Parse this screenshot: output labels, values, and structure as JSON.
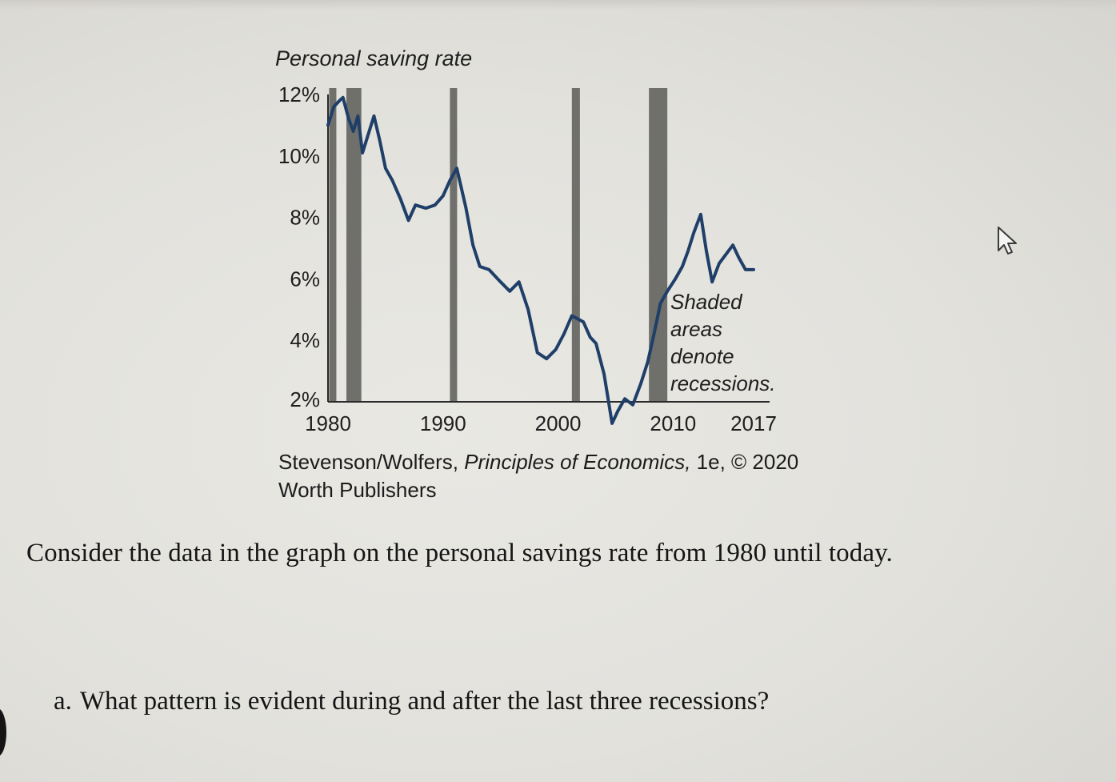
{
  "question": {
    "main_text": "Consider the data in the graph on the personal savings rate from 1980 until today.",
    "sub_marker": "a.",
    "sub_text": "What pattern is evident during and after the last three recessions?"
  },
  "caption": {
    "line1_authors": "Stevenson/Wolfers,",
    "line1_book": "Principles of Economics,",
    "line1_tail": "1e, © 2020",
    "line2": "Worth Publishers"
  },
  "chart_data": {
    "type": "line",
    "title": "Personal saving rate",
    "ylim": [
      2,
      12
    ],
    "xlim": [
      1980,
      2017
    ],
    "y_ticks": [
      "2%",
      "4%",
      "6%",
      "8%",
      "10%",
      "12%"
    ],
    "y_tick_values": [
      2,
      4,
      6,
      8,
      10,
      12
    ],
    "x_ticks": [
      "1980",
      "1990",
      "2000",
      "2010",
      "2017"
    ],
    "x_tick_values": [
      1980,
      1990,
      2000,
      2010,
      2017
    ],
    "annotation": [
      "Shaded",
      "areas",
      "denote",
      "recessions."
    ],
    "recessions": [
      {
        "start": 1980.1,
        "end": 1980.5
      },
      {
        "start": 1981.6,
        "end": 1982.9
      },
      {
        "start": 1990.6,
        "end": 1991.2
      },
      {
        "start": 2001.2,
        "end": 2001.9
      },
      {
        "start": 2007.9,
        "end": 2009.5
      }
    ],
    "series": [
      {
        "values": [
          [
            1980,
            11.0
          ],
          [
            1980.5,
            11.6
          ],
          [
            1981,
            11.8
          ],
          [
            1981.3,
            11.9
          ],
          [
            1981.8,
            11.2
          ],
          [
            1982.2,
            10.8
          ],
          [
            1982.6,
            11.3
          ],
          [
            1983,
            10.1
          ],
          [
            1983.5,
            10.7
          ],
          [
            1984,
            11.3
          ],
          [
            1984.5,
            10.5
          ],
          [
            1985,
            9.6
          ],
          [
            1985.6,
            9.2
          ],
          [
            1986.3,
            8.6
          ],
          [
            1987,
            7.9
          ],
          [
            1987.6,
            8.4
          ],
          [
            1988.5,
            8.3
          ],
          [
            1989.3,
            8.4
          ],
          [
            1990,
            8.7
          ],
          [
            1990.6,
            9.2
          ],
          [
            1991.2,
            9.6
          ],
          [
            1992,
            8.3
          ],
          [
            1992.6,
            7.1
          ],
          [
            1993.2,
            6.4
          ],
          [
            1994,
            6.3
          ],
          [
            1995,
            5.9
          ],
          [
            1995.8,
            5.6
          ],
          [
            1996.6,
            5.9
          ],
          [
            1997.4,
            5.0
          ],
          [
            1998.2,
            3.6
          ],
          [
            1999,
            3.4
          ],
          [
            1999.8,
            3.7
          ],
          [
            2000.5,
            4.2
          ],
          [
            2001.2,
            4.8
          ],
          [
            2002.2,
            4.6
          ],
          [
            2002.8,
            4.1
          ],
          [
            2003.3,
            3.9
          ],
          [
            2004,
            2.9
          ],
          [
            2004.7,
            1.3
          ],
          [
            2005.2,
            1.7
          ],
          [
            2005.8,
            2.1
          ],
          [
            2006.5,
            1.9
          ],
          [
            2007.2,
            2.6
          ],
          [
            2007.8,
            3.3
          ],
          [
            2008.4,
            4.3
          ],
          [
            2008.9,
            5.2
          ],
          [
            2009.5,
            5.6
          ],
          [
            2010.2,
            6.0
          ],
          [
            2010.8,
            6.4
          ],
          [
            2011.3,
            6.9
          ],
          [
            2011.8,
            7.5
          ],
          [
            2012.4,
            8.1
          ],
          [
            2012.9,
            6.9
          ],
          [
            2013.4,
            5.9
          ],
          [
            2014,
            6.5
          ],
          [
            2014.6,
            6.8
          ],
          [
            2015.2,
            7.1
          ],
          [
            2015.7,
            6.7
          ],
          [
            2016.3,
            6.3
          ],
          [
            2017,
            6.3
          ]
        ]
      }
    ]
  }
}
